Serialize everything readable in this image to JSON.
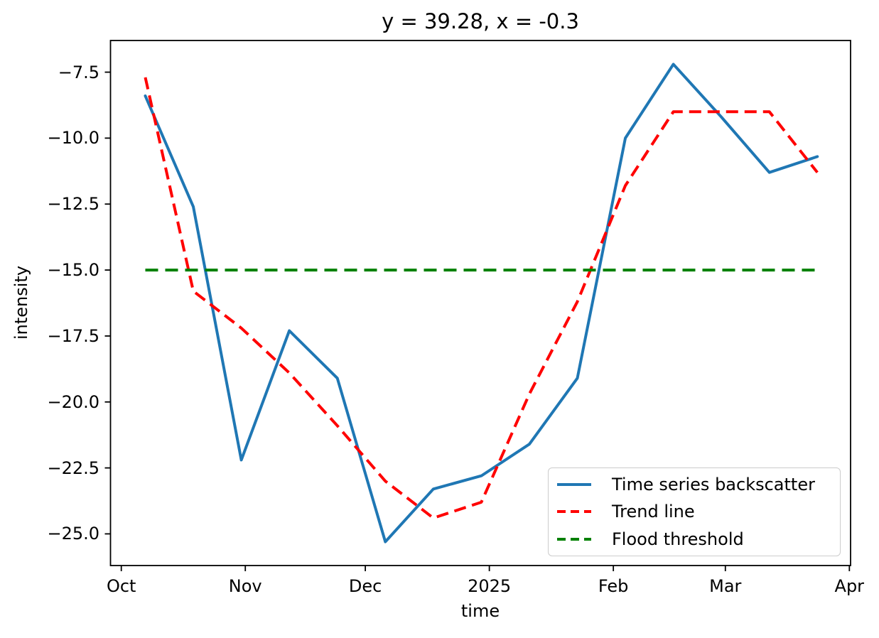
{
  "chart_data": {
    "type": "line",
    "title": "y = 39.28, x = -0.3",
    "xlabel": "time",
    "ylabel": "intensity",
    "x_dates": [
      "2024-10-07",
      "2024-10-19",
      "2024-10-31",
      "2024-11-12",
      "2024-11-24",
      "2024-12-06",
      "2024-12-18",
      "2024-12-30",
      "2025-01-11",
      "2025-01-23",
      "2025-02-04",
      "2025-02-16",
      "2025-02-28",
      "2025-03-12",
      "2025-03-24"
    ],
    "x_days_from_oct1_2024": [
      6,
      18,
      30,
      42,
      54,
      66,
      78,
      90,
      102,
      114,
      126,
      138,
      150,
      162,
      174
    ],
    "series": [
      {
        "name": "Time series backscatter",
        "color": "#1f77b4",
        "linestyle": "solid",
        "values": [
          -8.4,
          -12.6,
          -22.2,
          -17.3,
          -19.1,
          -25.3,
          -23.3,
          -22.8,
          -21.6,
          -19.1,
          -10.0,
          -7.2,
          -9.2,
          -11.3,
          -10.7
        ]
      },
      {
        "name": "Trend line",
        "color": "#ff0000",
        "linestyle": "dashed",
        "values": [
          -7.7,
          -15.8,
          -17.2,
          -18.9,
          -20.9,
          -23.0,
          -24.4,
          -23.8,
          -19.7,
          -16.2,
          -11.8,
          -9.0,
          -9.0,
          -9.0,
          -11.3
        ]
      },
      {
        "name": "Flood threshold",
        "color": "#008000",
        "linestyle": "dashed",
        "threshold_value": -15.0,
        "span_days": [
          6,
          174
        ]
      }
    ],
    "xticks": {
      "labels": [
        "Oct",
        "Nov",
        "Dec",
        "2025",
        "Feb",
        "Mar",
        "Apr"
      ],
      "days_from_oct1_2024": [
        0,
        31,
        61,
        92,
        123,
        151,
        182
      ]
    },
    "yticks": {
      "labels": [
        "−7.5",
        "−10.0",
        "−12.5",
        "−15.0",
        "−17.5",
        "−20.0",
        "−22.5",
        "−25.0"
      ],
      "values": [
        -7.5,
        -10.0,
        -12.5,
        -15.0,
        -17.5,
        -20.0,
        -22.5,
        -25.0
      ]
    },
    "xlim_days": [
      -2.7,
      182.3
    ],
    "ylim": [
      -26.2,
      -6.3
    ],
    "legend_position": "lower right",
    "grid": false,
    "axis_color": "#000000",
    "background_color": "#ffffff"
  }
}
